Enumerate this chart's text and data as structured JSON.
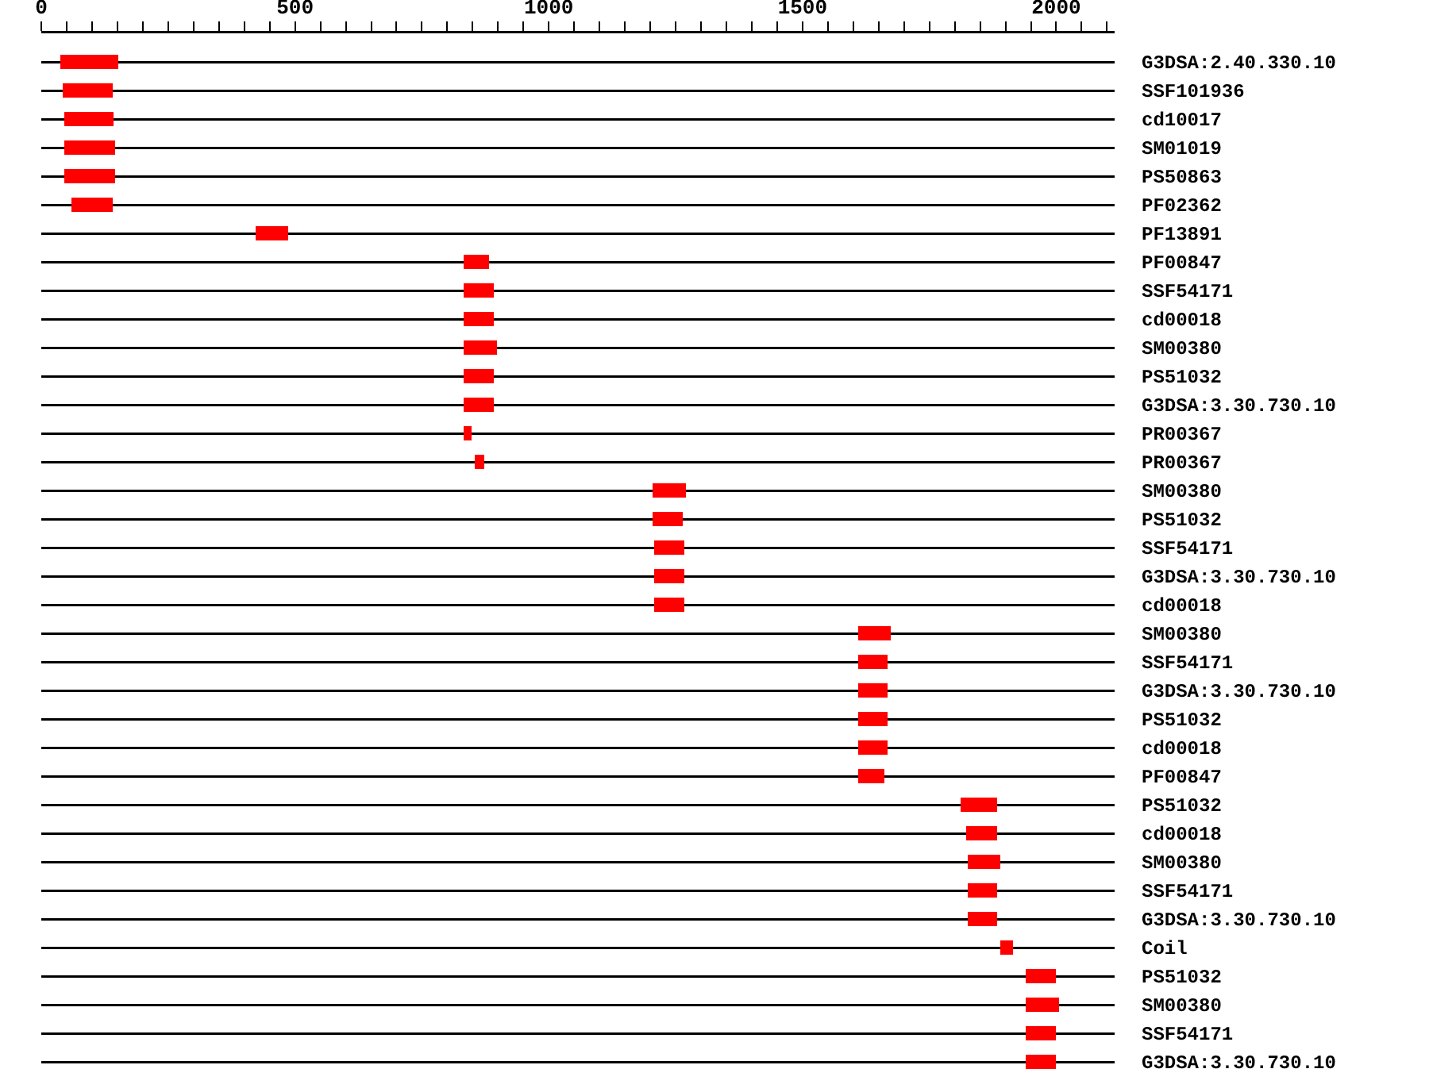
{
  "chart_data": {
    "type": "bar",
    "orientation": "horizontal",
    "categories": [
      "G3DSA:2.40.330.10",
      "SSF101936",
      "cd10017",
      "SM01019",
      "PS50863",
      "PF02362",
      "PF13891",
      "PF00847",
      "SSF54171",
      "cd00018",
      "SM00380",
      "PS51032",
      "G3DSA:3.30.730.10",
      "PR00367",
      "PR00367",
      "SM00380",
      "PS51032",
      "SSF54171",
      "G3DSA:3.30.730.10",
      "cd00018",
      "SM00380",
      "SSF54171",
      "G3DSA:3.30.730.10",
      "PS51032",
      "cd00018",
      "PF00847",
      "PS51032",
      "cd00018",
      "SM00380",
      "SSF54171",
      "G3DSA:3.30.730.10",
      "Coil",
      "PS51032",
      "SM00380",
      "SSF54171",
      "G3DSA:3.30.730.10"
    ],
    "base": [
      37,
      43,
      46,
      46,
      46,
      59,
      422,
      832,
      832,
      832,
      832,
      832,
      832,
      832,
      854,
      1205,
      1205,
      1208,
      1208,
      1208,
      1609,
      1609,
      1609,
      1609,
      1609,
      1609,
      1812,
      1822,
      1825,
      1825,
      1825,
      1890,
      1940,
      1940,
      1940,
      1940
    ],
    "values": [
      115,
      97,
      97,
      100,
      100,
      81,
      65,
      50,
      60,
      60,
      66,
      60,
      60,
      16,
      19,
      65,
      59,
      59,
      59,
      59,
      65,
      59,
      59,
      59,
      59,
      53,
      72,
      62,
      65,
      59,
      59,
      25,
      60,
      66,
      60,
      60
    ],
    "color": "#ff0000",
    "xlim": [
      0,
      2115
    ],
    "xticks": [
      0,
      {
        "value": 50,
        "label": null
      },
      {
        "value": 100,
        "label": null
      },
      {
        "value": 150,
        "label": null
      },
      {
        "value": 200,
        "label": null
      },
      {
        "value": 250,
        "label": null
      },
      {
        "value": 300,
        "label": null
      },
      {
        "value": 350,
        "label": null
      },
      {
        "value": 400,
        "label": null
      },
      {
        "value": 450,
        "label": null
      },
      500,
      {
        "value": 550,
        "label": null
      },
      {
        "value": 600,
        "label": null
      },
      {
        "value": 650,
        "label": null
      },
      {
        "value": 700,
        "label": null
      },
      {
        "value": 750,
        "label": null
      },
      {
        "value": 800,
        "label": null
      },
      {
        "value": 850,
        "label": null
      },
      {
        "value": 900,
        "label": null
      },
      {
        "value": 950,
        "label": null
      },
      1000,
      {
        "value": 1050,
        "label": null
      },
      {
        "value": 1100,
        "label": null
      },
      {
        "value": 1150,
        "label": null
      },
      {
        "value": 1200,
        "label": null
      },
      {
        "value": 1250,
        "label": null
      },
      {
        "value": 1300,
        "label": null
      },
      {
        "value": 1350,
        "label": null
      },
      {
        "value": 1400,
        "label": null
      },
      {
        "value": 1450,
        "label": null
      },
      1500,
      {
        "value": 1550,
        "label": null
      },
      {
        "value": 1600,
        "label": null
      },
      {
        "value": 1650,
        "label": null
      },
      {
        "value": 1700,
        "label": null
      },
      {
        "value": 1750,
        "label": null
      },
      {
        "value": 1800,
        "label": null
      },
      {
        "value": 1850,
        "label": null
      },
      {
        "value": 1900,
        "label": null
      },
      {
        "value": 1950,
        "label": null
      },
      2000,
      {
        "value": 2050,
        "label": null
      },
      {
        "value": 2100,
        "label": null
      }
    ],
    "grid": "y"
  }
}
